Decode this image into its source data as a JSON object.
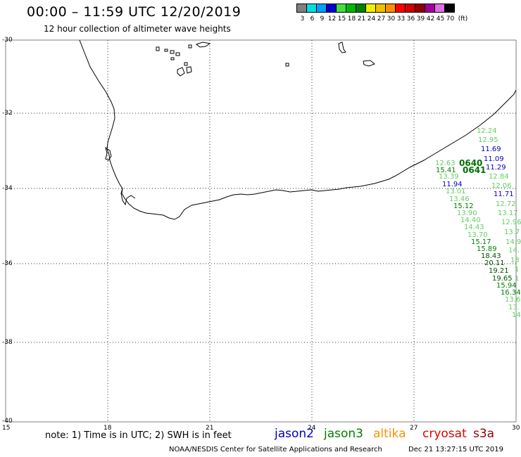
{
  "header": {
    "title": "00:00 – 11:59 UTC 12/20/2019",
    "subtitle": "12 hour collection of altimeter wave heights"
  },
  "color_scale": {
    "unit": "(ft)",
    "labels": [
      "3",
      "6",
      "9",
      "12",
      "15",
      "18",
      "21",
      "24",
      "27",
      "30",
      "33",
      "36",
      "39",
      "42",
      "45",
      "70"
    ],
    "colors": [
      "#808080",
      "#00e0e0",
      "#00a0ff",
      "#0000d0",
      "#40e040",
      "#00b800",
      "#008000",
      "#f0f000",
      "#f0c000",
      "#ff9000",
      "#ff0000",
      "#d00000",
      "#900000",
      "#a000a0",
      "#e070e0",
      "#000000"
    ]
  },
  "axes": {
    "lat_labels": [
      "-30",
      "-32",
      "-34",
      "-36",
      "-38",
      "-40"
    ],
    "lon_labels": [
      "15",
      "18",
      "21",
      "24",
      "27",
      "30"
    ]
  },
  "footer": {
    "note": "note: 1) Time is in UTC; 2) SWH is in feet",
    "legend": [
      {
        "name": "jason2",
        "color": "#0000c0"
      },
      {
        "name": "jason3",
        "color": "#008000"
      },
      {
        "name": "altika",
        "color": "#ff9000"
      },
      {
        "name": "cryosat",
        "color": "#e00000"
      },
      {
        "name": "s3a",
        "color": "#900000"
      }
    ],
    "credit": "NOAA/NESDIS Center for Satellite Applications and Research",
    "timestamp": "Dec 21 13:27:15 UTC 2019"
  },
  "pass_labels": [
    "0640",
    "0641"
  ],
  "observations": [
    {
      "text": "12.24",
      "color": "#60d060"
    },
    {
      "text": "12.95",
      "color": "#60d060"
    },
    {
      "text": "11.69",
      "color": "#0000c0"
    },
    {
      "text": "11.09",
      "color": "#0000c0"
    },
    {
      "text": "12.63",
      "color": "#60d060"
    },
    {
      "text": "11.29",
      "color": "#0000c0"
    },
    {
      "text": "15.41",
      "color": "#008000"
    },
    {
      "text": "12.84",
      "color": "#60d060"
    },
    {
      "text": "13.39",
      "color": "#60d060"
    },
    {
      "text": "11.94",
      "color": "#0000c0"
    },
    {
      "text": "12.06",
      "color": "#60d060"
    },
    {
      "text": "13.01",
      "color": "#60d060"
    },
    {
      "text": "11.71",
      "color": "#0000c0"
    },
    {
      "text": "13.46",
      "color": "#60d060"
    },
    {
      "text": "12.72",
      "color": "#60d060"
    },
    {
      "text": "15.12",
      "color": "#008000"
    },
    {
      "text": "13.17",
      "color": "#60d060"
    },
    {
      "text": "13.90",
      "color": "#60d060"
    },
    {
      "text": "12.96",
      "color": "#60d060"
    },
    {
      "text": "14.40",
      "color": "#60d060"
    },
    {
      "text": "14.43",
      "color": "#60d060"
    },
    {
      "text": "13.7",
      "color": "#60d060"
    },
    {
      "text": "13.70",
      "color": "#60d060"
    },
    {
      "text": "15.17",
      "color": "#008000"
    },
    {
      "text": "14.9",
      "color": "#60d060"
    },
    {
      "text": "15.89",
      "color": "#008000"
    },
    {
      "text": "14.",
      "color": "#60d060"
    },
    {
      "text": "18.43",
      "color": "#005000"
    },
    {
      "text": "13",
      "color": "#60d060"
    },
    {
      "text": "20.11",
      "color": "#005000"
    },
    {
      "text": "1",
      "color": "#60d060"
    },
    {
      "text": "19.21",
      "color": "#005000"
    },
    {
      "text": "19.65",
      "color": "#005000"
    },
    {
      "text": "1",
      "color": "#60d060"
    },
    {
      "text": "15.94",
      "color": "#008000"
    },
    {
      "text": "16.34",
      "color": "#008000"
    },
    {
      "text": "13.6",
      "color": "#60d060"
    },
    {
      "text": "13.",
      "color": "#60d060"
    },
    {
      "text": "14",
      "color": "#60d060"
    }
  ]
}
